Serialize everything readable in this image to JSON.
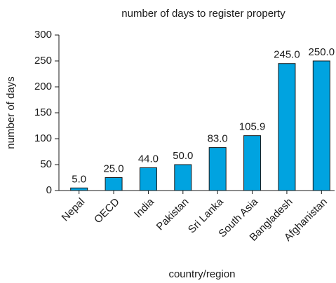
{
  "chart_data": {
    "type": "bar",
    "title": "number of days to register property",
    "x_label": "country/region",
    "y_label": "number of days",
    "categories": [
      "Nepal",
      "OECD",
      "India",
      "Pakistan",
      "Sri Lanka",
      "South Asia",
      "Bangladesh",
      "Afghanistan"
    ],
    "values": [
      5.0,
      25.0,
      44.0,
      50.0,
      83.0,
      105.9,
      245.0,
      250.0
    ],
    "value_labels": [
      "5.0",
      "25.0",
      "44.0",
      "50.0",
      "83.0",
      "105.9",
      "245.0",
      "250.0"
    ],
    "color": "#00a3e0",
    "ylim": [
      0,
      300
    ],
    "yticks": [
      0,
      50,
      100,
      150,
      200,
      250,
      300
    ],
    "grid": false
  }
}
